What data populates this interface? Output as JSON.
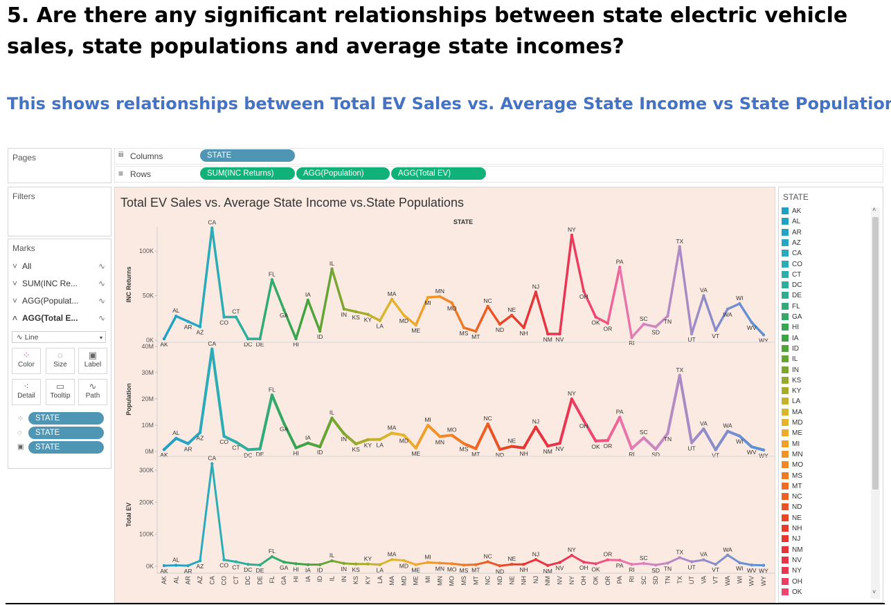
{
  "question": "5. Are there any significant relationships between state electric vehicle sales, state populations and average state incomes?",
  "subtitle": "This shows relationships between Total EV Sales vs. Average State Income vs State Populations",
  "shelves": {
    "pages_label": "Pages",
    "columns_label": "Columns",
    "rows_label": "Rows",
    "columns_pill": "STATE",
    "rows_pills": [
      "SUM(INC Returns)",
      "AGG(Population)",
      "AGG(Total EV)"
    ]
  },
  "filters_label": "Filters",
  "marks": {
    "label": "Marks",
    "cards": [
      "All",
      "SUM(INC Re...",
      "AGG(Populat...",
      "AGG(Total E..."
    ],
    "mark_type": "Line",
    "buttons": [
      "Color",
      "Size",
      "Label",
      "Detail",
      "Tooltip",
      "Path"
    ],
    "pills": [
      "STATE",
      "STATE",
      "STATE"
    ]
  },
  "legend": {
    "title": "STATE",
    "items": [
      {
        "label": "AK",
        "color": "#1f9fc4"
      },
      {
        "label": "AL",
        "color": "#21a2c5"
      },
      {
        "label": "AR",
        "color": "#24a4c2"
      },
      {
        "label": "AZ",
        "color": "#27a7bf"
      },
      {
        "label": "CA",
        "color": "#2aaabb"
      },
      {
        "label": "CO",
        "color": "#2cadb4"
      },
      {
        "label": "CT",
        "color": "#2daea9"
      },
      {
        "label": "DC",
        "color": "#2eae9c"
      },
      {
        "label": "DE",
        "color": "#2fad8e"
      },
      {
        "label": "FL",
        "color": "#31aa78"
      },
      {
        "label": "GA",
        "color": "#34a865"
      },
      {
        "label": "HI",
        "color": "#37a653"
      },
      {
        "label": "IA",
        "color": "#3ea443"
      },
      {
        "label": "ID",
        "color": "#52a33a"
      },
      {
        "label": "IL",
        "color": "#66a435"
      },
      {
        "label": "IN",
        "color": "#7ba62f"
      },
      {
        "label": "KS",
        "color": "#91a92c"
      },
      {
        "label": "KY",
        "color": "#a6ac2a"
      },
      {
        "label": "LA",
        "color": "#c4b22c"
      },
      {
        "label": "MA",
        "color": "#d8b52f"
      },
      {
        "label": "MD",
        "color": "#e5b42f"
      },
      {
        "label": "ME",
        "color": "#eeaa2b"
      },
      {
        "label": "MI",
        "color": "#f09f28"
      },
      {
        "label": "MN",
        "color": "#f19327"
      },
      {
        "label": "MO",
        "color": "#f18726"
      },
      {
        "label": "MS",
        "color": "#f07b25"
      },
      {
        "label": "MT",
        "color": "#ee6d24"
      },
      {
        "label": "NC",
        "color": "#ec6023"
      },
      {
        "label": "ND",
        "color": "#ea5325"
      },
      {
        "label": "NE",
        "color": "#e84727"
      },
      {
        "label": "NH",
        "color": "#e63c2c"
      },
      {
        "label": "NJ",
        "color": "#e53535"
      },
      {
        "label": "NM",
        "color": "#e6343f"
      },
      {
        "label": "NV",
        "color": "#e73449"
      },
      {
        "label": "NY",
        "color": "#e93753"
      },
      {
        "label": "OH",
        "color": "#ec3e60"
      },
      {
        "label": "OK",
        "color": "#ee466e"
      }
    ]
  },
  "chart_title": "Total EV Sales vs. Average State Income vs.State Populations",
  "chart_data": {
    "type": "line",
    "header": "STATE",
    "categories": [
      "AK",
      "AL",
      "AR",
      "AZ",
      "CA",
      "CO",
      "CT",
      "DC",
      "DE",
      "FL",
      "GA",
      "HI",
      "IA",
      "ID",
      "IL",
      "IN",
      "KS",
      "KY",
      "LA",
      "MA",
      "MD",
      "ME",
      "MI",
      "MN",
      "MO",
      "MS",
      "MT",
      "NC",
      "ND",
      "NE",
      "NH",
      "NJ",
      "NM",
      "NV",
      "NY",
      "OH",
      "OK",
      "OR",
      "PA",
      "RI",
      "SC",
      "SD",
      "TN",
      "TX",
      "UT",
      "VA",
      "VT",
      "WA",
      "WI",
      "WV",
      "WY"
    ],
    "colors": [
      "#1f9fc4",
      "#21a2c5",
      "#24a4c2",
      "#27a7bf",
      "#2aaabb",
      "#2cadb4",
      "#2daea9",
      "#2eae9c",
      "#2fad8e",
      "#31aa78",
      "#34a865",
      "#37a653",
      "#3ea443",
      "#52a33a",
      "#66a435",
      "#7ba62f",
      "#91a92c",
      "#a6ac2a",
      "#c4b22c",
      "#d8b52f",
      "#e5b42f",
      "#eeaa2b",
      "#f09f28",
      "#f19327",
      "#f18726",
      "#f07b25",
      "#ee6d24",
      "#ec6023",
      "#ea5325",
      "#e84727",
      "#e63c2c",
      "#e53535",
      "#e6343f",
      "#e73449",
      "#e93753",
      "#ec3e60",
      "#ee466e",
      "#f1547e",
      "#ef6498",
      "#e875ab",
      "#dd7fb9",
      "#cf85c0",
      "#c288c3",
      "#b58bc4",
      "#a88bc4",
      "#9a8cc6",
      "#8c8dc8",
      "#7f8ecb",
      "#728fce",
      "#6590d1",
      "#5991d4"
    ],
    "series": [
      {
        "name": "INC Returns",
        "ylabel": "INC Returns",
        "ylim": [
          0,
          125000
        ],
        "ticks": [
          {
            "v": 0,
            "t": "0K"
          },
          {
            "v": 50000,
            "t": "50K"
          },
          {
            "v": 100000,
            "t": "100K"
          }
        ],
        "values": [
          1500,
          27000,
          21000,
          15000,
          126000,
          26000,
          26000,
          1500,
          1500,
          68000,
          34000,
          1500,
          45000,
          10000,
          80000,
          35000,
          32000,
          29000,
          22000,
          46000,
          28000,
          17000,
          48000,
          49000,
          42000,
          14000,
          10000,
          38000,
          18000,
          28000,
          14000,
          54000,
          7000,
          7000,
          118000,
          55000,
          26000,
          19000,
          82000,
          3000,
          18000,
          15000,
          27000,
          105000,
          7000,
          50000,
          11000,
          35000,
          41000,
          20000,
          6000
        ]
      },
      {
        "name": "Population",
        "ylabel": "Population",
        "ylim": [
          0,
          40000000
        ],
        "ticks": [
          {
            "v": 0,
            "t": "0M"
          },
          {
            "v": 10000000,
            "t": "10M"
          },
          {
            "v": 20000000,
            "t": "20M"
          },
          {
            "v": 30000000,
            "t": "30M"
          },
          {
            "v": 40000000,
            "t": "40M"
          }
        ],
        "values": [
          730000,
          5000000,
          3000000,
          7200000,
          39000000,
          5800000,
          3600000,
          700000,
          1000000,
          21500000,
          10700000,
          1400000,
          3200000,
          1800000,
          12700000,
          6800000,
          2900000,
          4500000,
          4600000,
          7000000,
          6200000,
          1300000,
          10000000,
          5700000,
          6200000,
          3000000,
          1100000,
          10500000,
          780000,
          1950000,
          1380000,
          9300000,
          2100000,
          3100000,
          20000000,
          11800000,
          4000000,
          4200000,
          13000000,
          1100000,
          5200000,
          890000,
          6900000,
          29000000,
          3300000,
          8600000,
          640000,
          7700000,
          5900000,
          1800000,
          580000
        ]
      },
      {
        "name": "Total EV",
        "ylabel": "Total EV",
        "ylim": [
          0,
          330000
        ],
        "ticks": [
          {
            "v": 0,
            "t": "0K"
          },
          {
            "v": 100000,
            "t": "100K"
          },
          {
            "v": 200000,
            "t": "200K"
          },
          {
            "v": 300000,
            "t": "300K"
          }
        ],
        "values": [
          2000,
          3000,
          2000,
          17000,
          320000,
          20000,
          14000,
          6000,
          4000,
          30000,
          13000,
          8000,
          5000,
          5000,
          17000,
          9000,
          7000,
          7000,
          5000,
          21000,
          18000,
          5000,
          12000,
          10000,
          8000,
          4000,
          5000,
          14000,
          1500,
          6000,
          6000,
          21000,
          2500,
          12000,
          34000,
          13000,
          8000,
          20000,
          19000,
          6000,
          9000,
          4000,
          10000,
          27000,
          14000,
          20000,
          6000,
          35000,
          11000,
          4000,
          3000
        ]
      }
    ]
  }
}
